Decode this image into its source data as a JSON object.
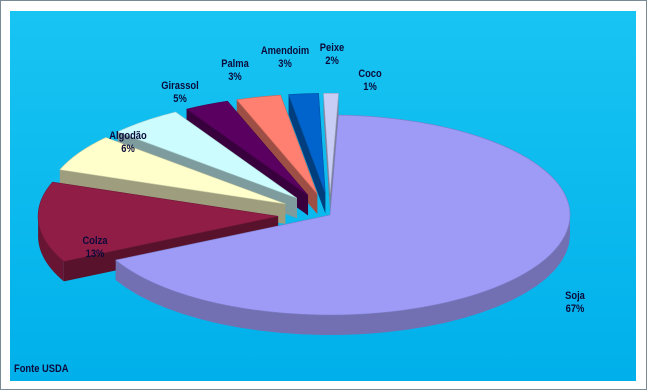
{
  "chart_data": {
    "type": "pie",
    "categories": [
      "Soja",
      "Colza",
      "Algodão",
      "Girassol",
      "Palma",
      "Amendoim",
      "Peixe",
      "Coco"
    ],
    "values": [
      67,
      13,
      6,
      5,
      3,
      3,
      2,
      1
    ],
    "value_labels": [
      "67%",
      "13%",
      "6%",
      "5%",
      "3%",
      "3%",
      "2%",
      "1%"
    ],
    "colors": [
      "#9e9bf7",
      "#8f1d46",
      "#ffffcc",
      "#ccfcfe",
      "#5a0060",
      "#ff7f70",
      "#0064cc",
      "#c8cdf5"
    ],
    "exploded": true,
    "three_d": true,
    "legend": "none",
    "source": "Fonte USDA"
  }
}
